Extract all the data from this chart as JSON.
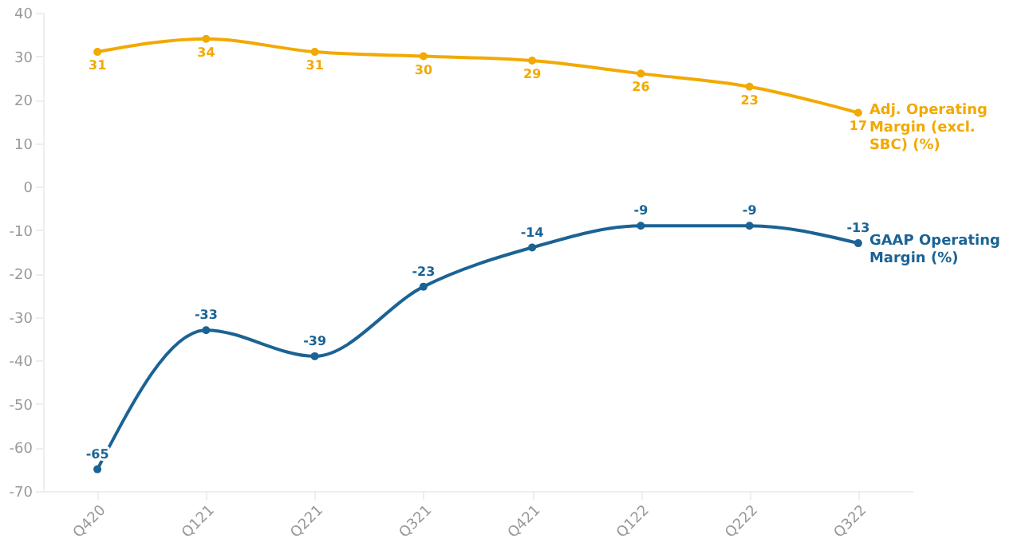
{
  "chart_data": {
    "type": "line",
    "categories": [
      "Q420",
      "Q121",
      "Q221",
      "Q321",
      "Q421",
      "Q122",
      "Q222",
      "Q322"
    ],
    "series": [
      {
        "name": "Adj. Operating Margin (excl. SBC) (%)",
        "color": "#f2a900",
        "values": [
          31,
          34,
          31,
          30,
          29,
          26,
          23,
          17
        ]
      },
      {
        "name": "GAAP Operating Margin (%)",
        "color": "#1b6394",
        "values": [
          -65,
          -33,
          -39,
          -23,
          -14,
          -9,
          -9,
          -13
        ]
      }
    ],
    "ylim": [
      -70,
      40
    ],
    "yticks": [
      -70,
      -60,
      -50,
      -40,
      -30,
      -20,
      -10,
      0,
      10,
      20,
      30,
      40
    ],
    "data_labels": true,
    "marker": "circle",
    "grid": false
  }
}
